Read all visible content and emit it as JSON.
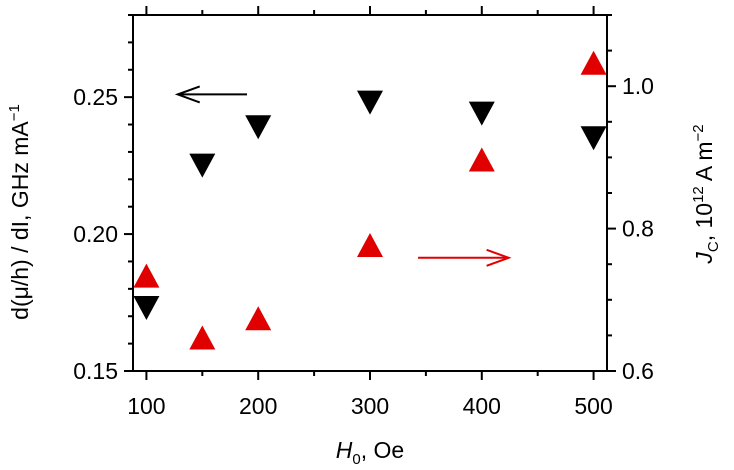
{
  "chart_data": {
    "type": "scatter",
    "xlabel_main": "H",
    "xlabel_sub": "0",
    "xlabel_rest": ", Oe",
    "ylabel_left": "d(μ/h) / dI, GHz mA",
    "ylabel_left_sup": "−1",
    "ylabel_right_main": "J",
    "ylabel_right_sub": "C",
    "ylabel_right_mid": ", 10",
    "ylabel_right_sup1": "12",
    "ylabel_right_unit": " A m",
    "ylabel_right_sup2": "−2",
    "xlim": [
      88,
      512
    ],
    "ylim_left": [
      0.15,
      0.28
    ],
    "ylim_right": [
      0.6,
      1.1
    ],
    "x_ticks": [
      100,
      200,
      300,
      400,
      500
    ],
    "x_tick_labels": [
      "100",
      "200",
      "300",
      "400",
      "500"
    ],
    "y_left_ticks": [
      0.15,
      0.2,
      0.25
    ],
    "y_left_tick_labels": [
      "0.15",
      "0.20",
      "0.25"
    ],
    "y_right_ticks": [
      0.6,
      0.8,
      1.0
    ],
    "y_right_tick_labels": [
      "0.6",
      "0.8",
      "1.0"
    ],
    "grid": false,
    "series": [
      {
        "axis": "left",
        "marker": "triangle-down",
        "color": "#000000",
        "x": [
          100,
          150,
          200,
          300,
          400,
          500
        ],
        "y": [
          0.173,
          0.225,
          0.239,
          0.248,
          0.244,
          0.235
        ]
      },
      {
        "axis": "right",
        "marker": "triangle-up",
        "color": "#e00000",
        "x": [
          100,
          150,
          200,
          300,
          400,
          500
        ],
        "y": [
          0.734,
          0.647,
          0.674,
          0.777,
          0.897,
          1.033
        ]
      }
    ],
    "annotations": [
      {
        "type": "arrow",
        "direction": "left",
        "color": "#000000",
        "axis": "left",
        "x_from": 190,
        "x_to": 128,
        "y": 0.251
      },
      {
        "type": "arrow",
        "direction": "right",
        "color": "#e00000",
        "axis": "right",
        "x_from": 343,
        "x_to": 424,
        "y": 0.759
      }
    ]
  }
}
